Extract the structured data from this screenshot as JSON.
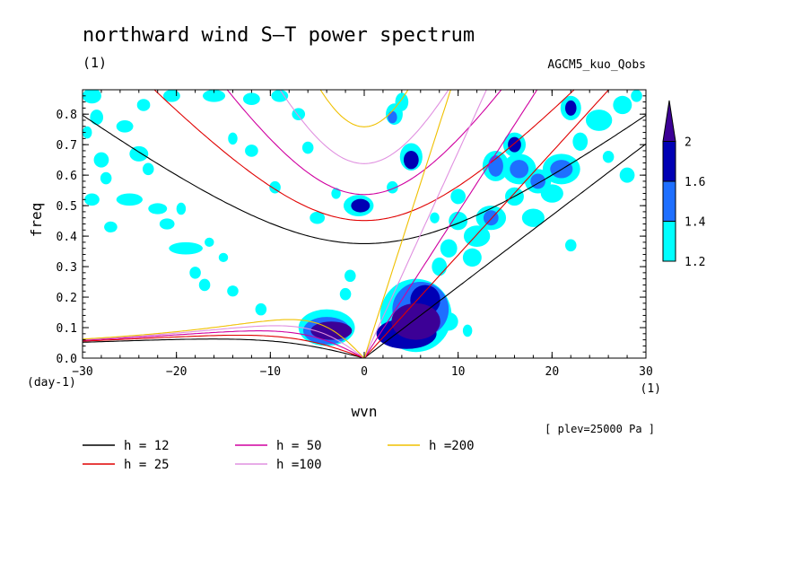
{
  "chart_data": {
    "type": "heatmap",
    "title": "northward wind S-T power spectrum",
    "subtitle_left": "(1)",
    "subtitle_right": "AGCM5_kuo_Qobs",
    "xlabel": "wvn",
    "ylabel": "freq",
    "x_unit": "(1)",
    "y_unit": "(day-1)",
    "note": "[ plev=25000 Pa ]",
    "xlim": [
      -30,
      30
    ],
    "ylim": [
      0,
      0.88
    ],
    "x_ticks": [
      -30,
      -20,
      -10,
      0,
      10,
      20,
      30
    ],
    "y_ticks": [
      0.0,
      0.1,
      0.2,
      0.3,
      0.4,
      0.5,
      0.6,
      0.7,
      0.8
    ],
    "x_tick_labels": [
      "-30",
      "-20",
      "-10",
      "0",
      "10",
      "20",
      "30"
    ],
    "y_tick_labels": [
      "0.0",
      "0.1",
      "0.2",
      "0.3",
      "0.4",
      "0.5",
      "0.6",
      "0.7",
      "0.8"
    ],
    "colorbar": {
      "levels": [
        1.2,
        1.4,
        1.6,
        2
      ],
      "labels": [
        "1.2",
        "1.4",
        "1.6",
        "2"
      ],
      "colors": [
        "#00ffff",
        "#1e6fff",
        "#0000b4",
        "#3c0096"
      ]
    },
    "legend": [
      {
        "label": "h = 12",
        "h": 12,
        "color": "#000000"
      },
      {
        "label": "h = 25",
        "h": 25,
        "color": "#e00000"
      },
      {
        "label": "h = 50",
        "h": 50,
        "color": "#d000a0"
      },
      {
        "label": "h =100",
        "h": 100,
        "color": "#e090e0"
      },
      {
        "label": "h =200",
        "h": 200,
        "color": "#f0c000"
      }
    ],
    "blobs": [
      {
        "x": 5.5,
        "y": 0.12,
        "rx": 2.6,
        "ry": 0.06,
        "level": 4
      },
      {
        "x": 6.5,
        "y": 0.19,
        "rx": 1.6,
        "ry": 0.05,
        "level": 3
      },
      {
        "x": 4.5,
        "y": 0.08,
        "rx": 3.2,
        "ry": 0.05,
        "level": 3
      },
      {
        "x": 6.0,
        "y": 0.16,
        "rx": 3.0,
        "ry": 0.09,
        "level": 2
      },
      {
        "x": 5.5,
        "y": 0.14,
        "rx": 3.8,
        "ry": 0.12,
        "level": 1
      },
      {
        "x": -3.5,
        "y": 0.09,
        "rx": 2.2,
        "ry": 0.03,
        "level": 4
      },
      {
        "x": -4.0,
        "y": 0.09,
        "rx": 2.5,
        "ry": 0.045,
        "level": 2
      },
      {
        "x": -4.0,
        "y": 0.1,
        "rx": 3.0,
        "ry": 0.06,
        "level": 1
      },
      {
        "x": 5.0,
        "y": 0.65,
        "rx": 0.8,
        "ry": 0.03,
        "level": 3
      },
      {
        "x": 5.0,
        "y": 0.66,
        "rx": 1.2,
        "ry": 0.045,
        "level": 1
      },
      {
        "x": 3.0,
        "y": 0.79,
        "rx": 0.5,
        "ry": 0.02,
        "level": 2
      },
      {
        "x": 3.2,
        "y": 0.8,
        "rx": 0.9,
        "ry": 0.035,
        "level": 1
      },
      {
        "x": 4.0,
        "y": 0.84,
        "rx": 0.7,
        "ry": 0.03,
        "level": 1
      },
      {
        "x": -0.4,
        "y": 0.5,
        "rx": 1.0,
        "ry": 0.022,
        "level": 3
      },
      {
        "x": -0.6,
        "y": 0.5,
        "rx": 1.6,
        "ry": 0.035,
        "level": 1
      },
      {
        "x": 14.0,
        "y": 0.63,
        "rx": 0.8,
        "ry": 0.035,
        "level": 2
      },
      {
        "x": 14.0,
        "y": 0.63,
        "rx": 1.4,
        "ry": 0.05,
        "level": 1
      },
      {
        "x": 16.5,
        "y": 0.62,
        "rx": 1.0,
        "ry": 0.03,
        "level": 2
      },
      {
        "x": 16.5,
        "y": 0.62,
        "rx": 1.8,
        "ry": 0.05,
        "level": 1
      },
      {
        "x": 13.5,
        "y": 0.46,
        "rx": 0.8,
        "ry": 0.025,
        "level": 2
      },
      {
        "x": 13.5,
        "y": 0.46,
        "rx": 1.6,
        "ry": 0.04,
        "level": 1
      },
      {
        "x": 16.0,
        "y": 0.7,
        "rx": 0.7,
        "ry": 0.025,
        "level": 3
      },
      {
        "x": 16.0,
        "y": 0.7,
        "rx": 1.2,
        "ry": 0.04,
        "level": 1
      },
      {
        "x": 21.0,
        "y": 0.62,
        "rx": 1.2,
        "ry": 0.03,
        "level": 2
      },
      {
        "x": 21.0,
        "y": 0.62,
        "rx": 2.0,
        "ry": 0.05,
        "level": 1
      },
      {
        "x": 22.0,
        "y": 0.82,
        "rx": 0.6,
        "ry": 0.025,
        "level": 3
      },
      {
        "x": 22.0,
        "y": 0.82,
        "rx": 1.1,
        "ry": 0.04,
        "level": 1
      },
      {
        "x": 18.5,
        "y": 0.58,
        "rx": 0.8,
        "ry": 0.025,
        "level": 2
      },
      {
        "x": 18.5,
        "y": 0.58,
        "rx": 1.4,
        "ry": 0.04,
        "level": 1
      },
      {
        "x": 16.0,
        "y": 0.53,
        "rx": 1.0,
        "ry": 0.03,
        "level": 1
      },
      {
        "x": 11.5,
        "y": 0.33,
        "rx": 1.0,
        "ry": 0.03,
        "level": 1
      },
      {
        "x": 12.0,
        "y": 0.4,
        "rx": 1.4,
        "ry": 0.035,
        "level": 1
      },
      {
        "x": 10.0,
        "y": 0.45,
        "rx": 1.0,
        "ry": 0.03,
        "level": 1
      },
      {
        "x": 9.0,
        "y": 0.36,
        "rx": 0.9,
        "ry": 0.03,
        "level": 1
      },
      {
        "x": 8.0,
        "y": 0.3,
        "rx": 0.8,
        "ry": 0.03,
        "level": 1
      },
      {
        "x": 10.0,
        "y": 0.53,
        "rx": 0.8,
        "ry": 0.025,
        "level": 1
      },
      {
        "x": 18.0,
        "y": 0.46,
        "rx": 1.2,
        "ry": 0.03,
        "level": 1
      },
      {
        "x": 20.0,
        "y": 0.54,
        "rx": 1.2,
        "ry": 0.03,
        "level": 1
      },
      {
        "x": 25.0,
        "y": 0.78,
        "rx": 1.4,
        "ry": 0.035,
        "level": 1
      },
      {
        "x": 27.5,
        "y": 0.83,
        "rx": 1.0,
        "ry": 0.03,
        "level": 1
      },
      {
        "x": 28.0,
        "y": 0.6,
        "rx": 0.8,
        "ry": 0.025,
        "level": 1
      },
      {
        "x": 22.0,
        "y": 0.37,
        "rx": 0.6,
        "ry": 0.02,
        "level": 1
      },
      {
        "x": -29.0,
        "y": 0.86,
        "rx": 1.0,
        "ry": 0.025,
        "level": 1
      },
      {
        "x": -29.5,
        "y": 0.74,
        "rx": 0.5,
        "ry": 0.02,
        "level": 1
      },
      {
        "x": -28.5,
        "y": 0.79,
        "rx": 0.7,
        "ry": 0.025,
        "level": 1
      },
      {
        "x": -29.0,
        "y": 0.52,
        "rx": 0.8,
        "ry": 0.02,
        "level": 1
      },
      {
        "x": -28.0,
        "y": 0.65,
        "rx": 0.8,
        "ry": 0.025,
        "level": 1
      },
      {
        "x": -27.5,
        "y": 0.59,
        "rx": 0.6,
        "ry": 0.02,
        "level": 1
      },
      {
        "x": -27.0,
        "y": 0.43,
        "rx": 0.7,
        "ry": 0.018,
        "level": 1
      },
      {
        "x": -24.0,
        "y": 0.67,
        "rx": 1.0,
        "ry": 0.025,
        "level": 1
      },
      {
        "x": -25.0,
        "y": 0.52,
        "rx": 1.4,
        "ry": 0.02,
        "level": 1
      },
      {
        "x": -22.0,
        "y": 0.49,
        "rx": 1.0,
        "ry": 0.018,
        "level": 1
      },
      {
        "x": -21.0,
        "y": 0.44,
        "rx": 0.8,
        "ry": 0.018,
        "level": 1
      },
      {
        "x": -23.0,
        "y": 0.62,
        "rx": 0.6,
        "ry": 0.02,
        "level": 1
      },
      {
        "x": -19.0,
        "y": 0.36,
        "rx": 1.8,
        "ry": 0.02,
        "level": 1
      },
      {
        "x": -18.0,
        "y": 0.28,
        "rx": 0.6,
        "ry": 0.02,
        "level": 1
      },
      {
        "x": -17.0,
        "y": 0.24,
        "rx": 0.6,
        "ry": 0.02,
        "level": 1
      },
      {
        "x": -14.0,
        "y": 0.22,
        "rx": 0.6,
        "ry": 0.018,
        "level": 1
      },
      {
        "x": -16.5,
        "y": 0.38,
        "rx": 0.5,
        "ry": 0.015,
        "level": 1
      },
      {
        "x": -19.5,
        "y": 0.49,
        "rx": 0.5,
        "ry": 0.02,
        "level": 1
      },
      {
        "x": -23.5,
        "y": 0.83,
        "rx": 0.7,
        "ry": 0.02,
        "level": 1
      },
      {
        "x": -20.5,
        "y": 0.86,
        "rx": 0.9,
        "ry": 0.02,
        "level": 1
      },
      {
        "x": -16.0,
        "y": 0.86,
        "rx": 1.2,
        "ry": 0.02,
        "level": 1
      },
      {
        "x": -12.0,
        "y": 0.85,
        "rx": 0.9,
        "ry": 0.02,
        "level": 1
      },
      {
        "x": -9.0,
        "y": 0.86,
        "rx": 0.9,
        "ry": 0.02,
        "level": 1
      },
      {
        "x": -25.5,
        "y": 0.76,
        "rx": 0.9,
        "ry": 0.02,
        "level": 1
      },
      {
        "x": -12.0,
        "y": 0.68,
        "rx": 0.7,
        "ry": 0.02,
        "level": 1
      },
      {
        "x": -14.0,
        "y": 0.72,
        "rx": 0.5,
        "ry": 0.02,
        "level": 1
      },
      {
        "x": -7.0,
        "y": 0.8,
        "rx": 0.7,
        "ry": 0.02,
        "level": 1
      },
      {
        "x": -6.0,
        "y": 0.69,
        "rx": 0.6,
        "ry": 0.02,
        "level": 1
      },
      {
        "x": -5.0,
        "y": 0.46,
        "rx": 0.8,
        "ry": 0.02,
        "level": 1
      },
      {
        "x": -1.5,
        "y": 0.27,
        "rx": 0.6,
        "ry": 0.02,
        "level": 1
      },
      {
        "x": -11.0,
        "y": 0.16,
        "rx": 0.6,
        "ry": 0.02,
        "level": 1
      },
      {
        "x": -15.0,
        "y": 0.33,
        "rx": 0.5,
        "ry": 0.015,
        "level": 1
      },
      {
        "x": -9.5,
        "y": 0.56,
        "rx": 0.6,
        "ry": 0.02,
        "level": 1
      },
      {
        "x": -3.0,
        "y": 0.54,
        "rx": 0.5,
        "ry": 0.018,
        "level": 1
      },
      {
        "x": -2.0,
        "y": 0.21,
        "rx": 0.6,
        "ry": 0.02,
        "level": 1
      },
      {
        "x": 9.0,
        "y": 0.12,
        "rx": 1.0,
        "ry": 0.03,
        "level": 1
      },
      {
        "x": 11.0,
        "y": 0.09,
        "rx": 0.5,
        "ry": 0.02,
        "level": 1
      },
      {
        "x": 3.0,
        "y": 0.56,
        "rx": 0.6,
        "ry": 0.02,
        "level": 1
      },
      {
        "x": 7.5,
        "y": 0.46,
        "rx": 0.5,
        "ry": 0.018,
        "level": 1
      },
      {
        "x": 23.0,
        "y": 0.71,
        "rx": 0.8,
        "ry": 0.03,
        "level": 1
      },
      {
        "x": 26.0,
        "y": 0.66,
        "rx": 0.6,
        "ry": 0.02,
        "level": 1
      },
      {
        "x": 29.0,
        "y": 0.86,
        "rx": 0.6,
        "ry": 0.02,
        "level": 1
      }
    ]
  }
}
